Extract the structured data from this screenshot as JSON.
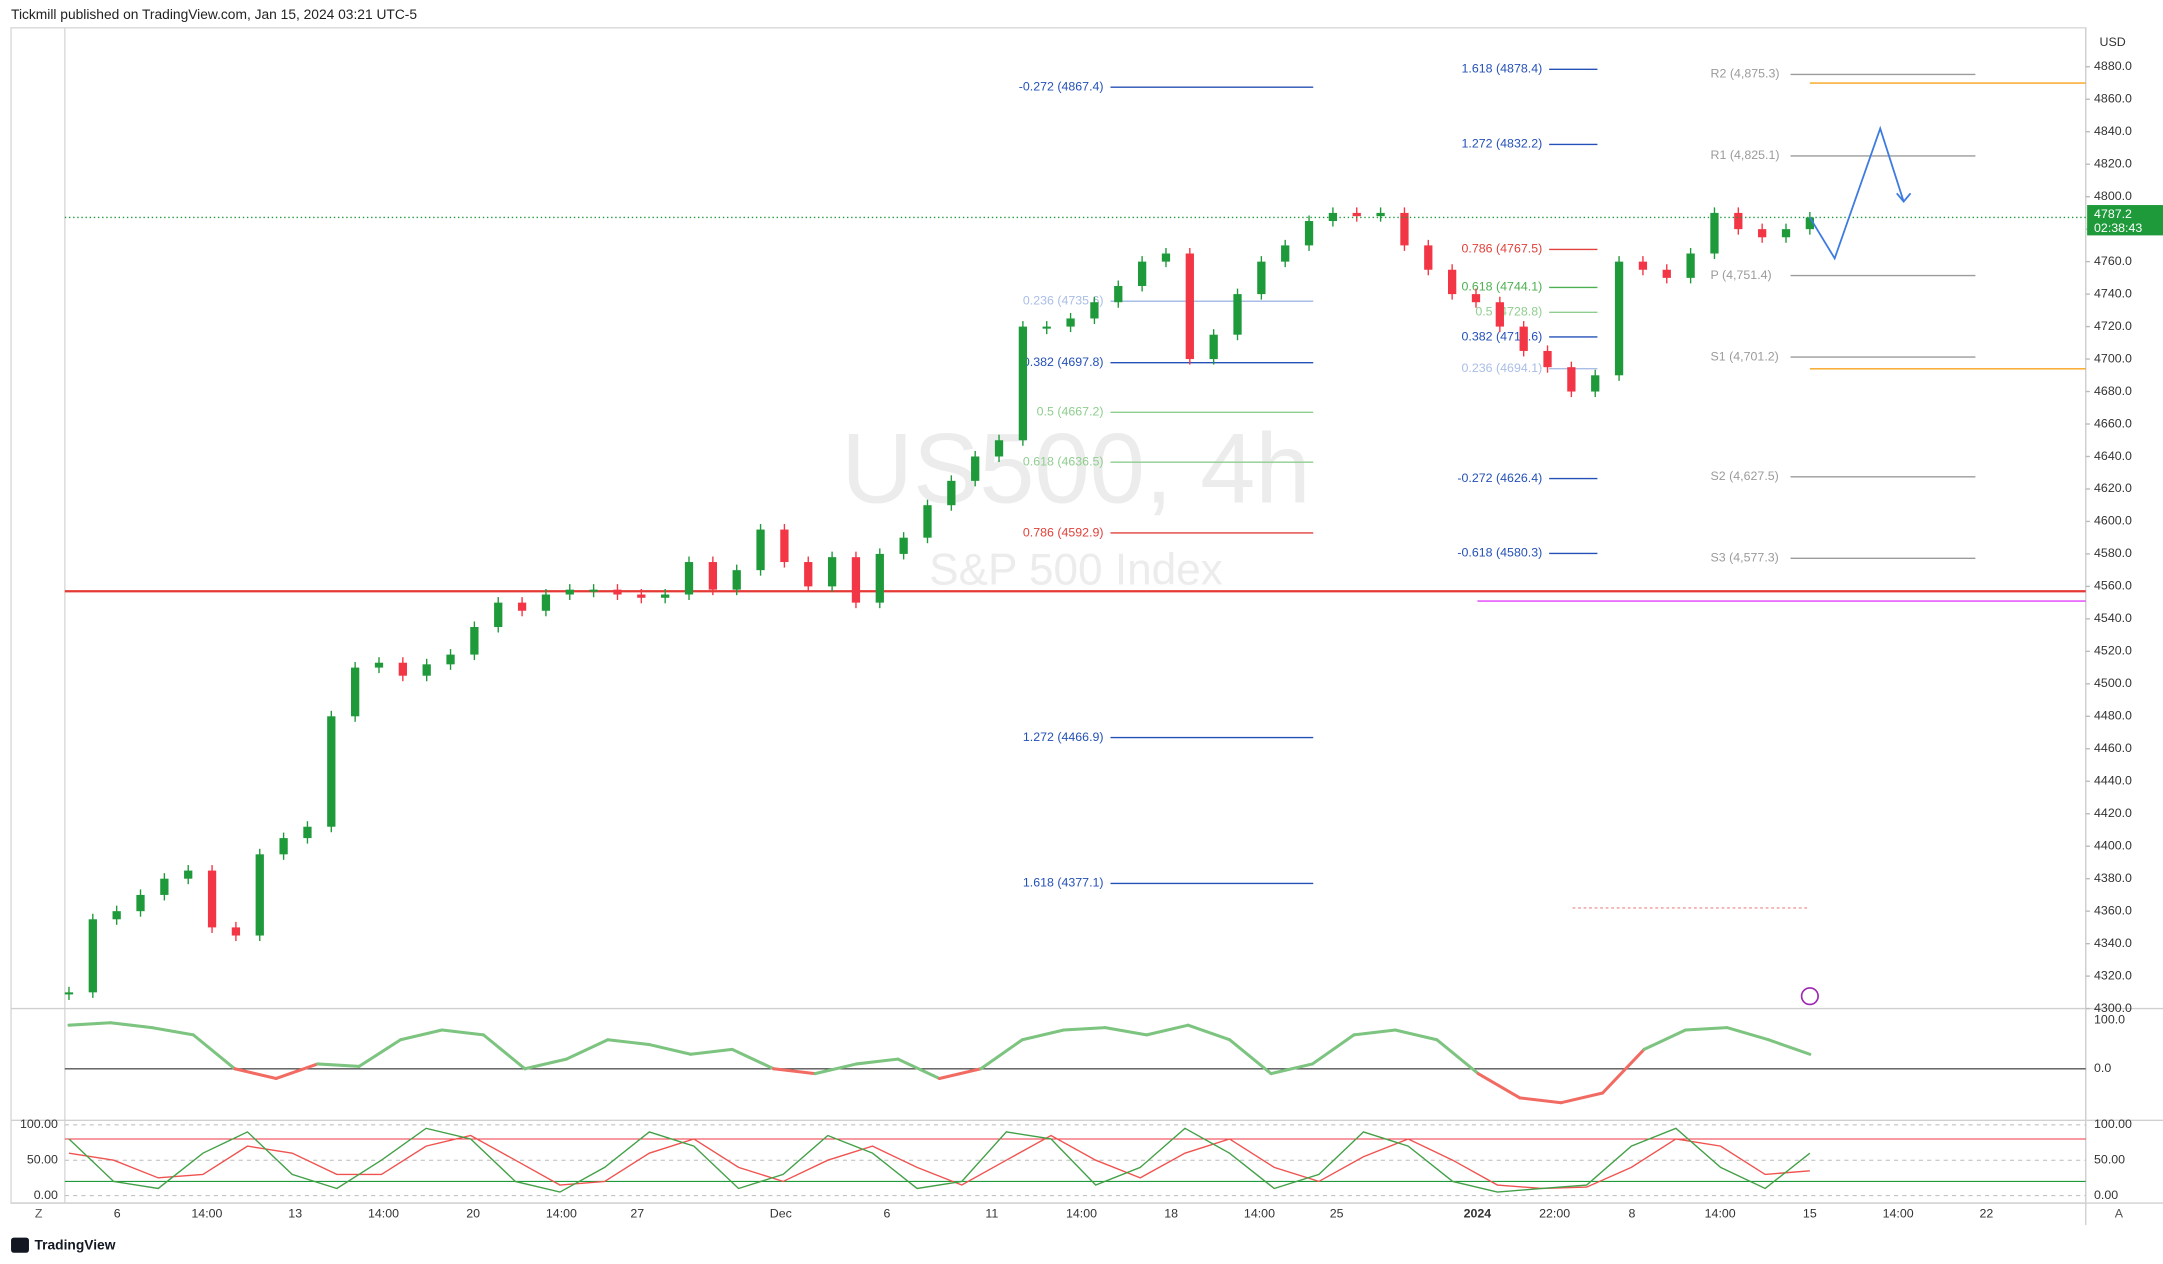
{
  "header": {
    "publisher": "Tickmill published on TradingView.com, Jan 15, 2024 03:21 UTC-5"
  },
  "chart_data": [
    {
      "type": "candlestick",
      "title": "US500, 4h",
      "subtitle": "S&P 500 Index",
      "currency": "USD",
      "up_color": "#1f9a3a",
      "down_color": "#f23645",
      "values": [
        4310,
        4355,
        4360,
        4370,
        4380,
        4385,
        4350,
        4345,
        4395,
        4405,
        4412,
        4480,
        4510,
        4513,
        4505,
        4512,
        4518,
        4535,
        4550,
        4545,
        4555,
        4558,
        4558,
        4555,
        4553,
        4555,
        4575,
        4558,
        4570,
        4595,
        4575,
        4560,
        4578,
        4550,
        4580,
        4590,
        4610,
        4625,
        4640,
        4650,
        4720,
        4720,
        4725,
        4735,
        4745,
        4760,
        4765,
        4700,
        4715,
        4740,
        4760,
        4770,
        4785,
        4790,
        4788,
        4790,
        4770,
        4755,
        4740,
        4735,
        4720,
        4705,
        4695,
        4680,
        4690,
        4760,
        4755,
        4750,
        4765,
        4790,
        4780,
        4775,
        4780,
        4787.2
      ],
      "ylim": [
        4300,
        4904
      ],
      "yticks": [
        {
          "value": 4300,
          "label": "4300.0"
        },
        {
          "value": 4320,
          "label": "4320.0"
        },
        {
          "value": 4340,
          "label": "4340.0"
        },
        {
          "value": 4360,
          "label": "4360.0"
        },
        {
          "value": 4380,
          "label": "4380.0"
        },
        {
          "value": 4400,
          "label": "4400.0"
        },
        {
          "value": 4420,
          "label": "4420.0"
        },
        {
          "value": 4440,
          "label": "4440.0"
        },
        {
          "value": 4460,
          "label": "4460.0"
        },
        {
          "value": 4480,
          "label": "4480.0"
        },
        {
          "value": 4500,
          "label": "4500.0"
        },
        {
          "value": 4520,
          "label": "4520.0"
        },
        {
          "value": 4540,
          "label": "4540.0"
        },
        {
          "value": 4560,
          "label": "4560.0"
        },
        {
          "value": 4580,
          "label": "4580.0"
        },
        {
          "value": 4600,
          "label": "4600.0"
        },
        {
          "value": 4620,
          "label": "4620.0"
        },
        {
          "value": 4640,
          "label": "4640.0"
        },
        {
          "value": 4660,
          "label": "4660.0"
        },
        {
          "value": 4680,
          "label": "4680.0"
        },
        {
          "value": 4700,
          "label": "4700.0"
        },
        {
          "value": 4720,
          "label": "4720.0"
        },
        {
          "value": 4740,
          "label": "4740.0"
        },
        {
          "value": 4760,
          "label": "4760.0"
        },
        {
          "value": 4780,
          "label": "4780.0"
        },
        {
          "value": 4800,
          "label": "4800.0"
        },
        {
          "value": 4820,
          "label": "4820.0"
        },
        {
          "value": 4840,
          "label": "4840.0"
        },
        {
          "value": 4860,
          "label": "4860.0"
        },
        {
          "value": 4880,
          "label": "4880.0"
        }
      ],
      "x_labels": [
        "6",
        "14:00",
        "13",
        "14:00",
        "20",
        "14:00",
        "27",
        "Dec",
        "6",
        "11",
        "14:00",
        "18",
        "14:00",
        "25",
        "2024",
        "22:00",
        "8",
        "14:00",
        "15",
        "14:00",
        "22"
      ],
      "last_price": {
        "value": 4787.2,
        "label": "4787.2",
        "color": "#1f9a3a"
      },
      "countdown": "02:38:43",
      "fib_sets": [
        {
          "levels": [
            {
              "label": "-0.272 (4867.4)",
              "value": 4867.4,
              "color": "#2451b7"
            },
            {
              "label": "0.236 (4735.6)",
              "value": 4735.6,
              "color": "#a9bde6"
            },
            {
              "label": "0.382 (4697.8)",
              "value": 4697.8,
              "color": "#2451b7"
            },
            {
              "label": "0.5 (4667.2)",
              "value": 4667.2,
              "color": "#8fce8f"
            },
            {
              "label": "0.618 (4636.5)",
              "value": 4636.5,
              "color": "#8fce8f"
            },
            {
              "label": "0.786 (4592.9)",
              "value": 4592.9,
              "color": "#e0413a"
            },
            {
              "label": "1.272 (4466.9)",
              "value": 4466.9,
              "color": "#2451b7"
            },
            {
              "label": "1.618 (4377.1)",
              "value": 4377.1,
              "color": "#2451b7"
            }
          ]
        },
        {
          "levels": [
            {
              "label": "1.618 (4878.4)",
              "value": 4878.4,
              "color": "#2451b7"
            },
            {
              "label": "1.272 (4832.2)",
              "value": 4832.2,
              "color": "#2451b7"
            },
            {
              "label": "0.786 (4767.5)",
              "value": 4767.5,
              "color": "#e0413a"
            },
            {
              "label": "0.618 (4744.1)",
              "value": 4744.1,
              "color": "#4caf50"
            },
            {
              "label": "0.5 (4728.8)",
              "value": 4728.8,
              "color": "#8fce8f"
            },
            {
              "label": "0.382 (4713.6)",
              "value": 4713.6,
              "color": "#2451b7"
            },
            {
              "label": "0.236 (4694.1)",
              "value": 4694.1,
              "color": "#a9bde6"
            },
            {
              "label": "-0.272 (4626.4)",
              "value": 4626.4,
              "color": "#2451b7"
            },
            {
              "label": "-0.618 (4580.3)",
              "value": 4580.3,
              "color": "#2451b7"
            }
          ]
        },
        {
          "levels": [
            {
              "label": "R2 (4,875.3)",
              "value": 4875.3,
              "color": "#9b9b9b"
            },
            {
              "label": "R1 (4,825.1)",
              "value": 4825.1,
              "color": "#9b9b9b"
            },
            {
              "label": "P (4,751.4)",
              "value": 4751.4,
              "color": "#9b9b9b"
            },
            {
              "label": "S1 (4,701.2)",
              "value": 4701.2,
              "color": "#9b9b9b"
            },
            {
              "label": "S2 (4,627.5)",
              "value": 4627.5,
              "color": "#9b9b9b"
            },
            {
              "label": "S3 (4,577.3)",
              "value": 4577.3,
              "color": "#9b9b9b"
            }
          ]
        }
      ],
      "lines": [
        {
          "value": 4557,
          "color": "#e53935"
        },
        {
          "value": 4551,
          "color": "#e040fb"
        },
        {
          "value": 4870,
          "color": "#f7a21b"
        },
        {
          "value": 4694,
          "color": "#f7a21b"
        },
        {
          "value": 4362,
          "color": "#ef9a9a"
        }
      ],
      "projection": {
        "values": [
          4787.2,
          4762,
          4842,
          4797
        ],
        "color": "#3d7be0"
      }
    },
    {
      "type": "line",
      "pos_color": "#7cc47f",
      "neg_color": "#f26b63",
      "values": [
        90,
        95,
        85,
        70,
        0,
        -20,
        10,
        5,
        60,
        80,
        70,
        0,
        20,
        60,
        50,
        30,
        40,
        0,
        -10,
        10,
        20,
        -20,
        0,
        60,
        80,
        85,
        70,
        90,
        60,
        -10,
        10,
        70,
        80,
        60,
        -10,
        -60,
        -70,
        -50,
        40,
        80,
        85,
        60,
        30
      ],
      "ylim": [
        -95,
        110
      ],
      "yticks": [
        {
          "value": 100,
          "label": "100.0"
        },
        {
          "value": 0,
          "label": "0.0"
        }
      ]
    },
    {
      "type": "line",
      "k_color": "#43a047",
      "d_color": "#ef5350",
      "k_values": [
        80,
        20,
        10,
        60,
        90,
        30,
        10,
        50,
        95,
        80,
        20,
        5,
        40,
        90,
        70,
        10,
        30,
        85,
        60,
        10,
        20,
        90,
        80,
        15,
        40,
        95,
        60,
        10,
        30,
        90,
        70,
        20,
        5,
        10,
        15,
        70,
        95,
        40,
        10,
        60
      ],
      "d_values": [
        60,
        50,
        25,
        30,
        70,
        60,
        30,
        30,
        70,
        85,
        50,
        15,
        20,
        60,
        80,
        40,
        20,
        50,
        70,
        40,
        15,
        50,
        85,
        50,
        25,
        60,
        80,
        40,
        20,
        55,
        80,
        50,
        15,
        10,
        12,
        40,
        80,
        70,
        30,
        35
      ],
      "bands": [
        {
          "value": 80,
          "color": "#f23645"
        },
        {
          "value": 20,
          "color": "#1f9a3a"
        }
      ],
      "ylim": [
        -10.6,
        106.4
      ],
      "yticks": [
        {
          "value": 100,
          "label": "100.00"
        },
        {
          "value": 50,
          "label": "50.00"
        },
        {
          "value": 0,
          "label": "0.00"
        }
      ]
    }
  ],
  "footer": {
    "brand": "TradingView",
    "left_button": "Z",
    "right_button": "A"
  }
}
